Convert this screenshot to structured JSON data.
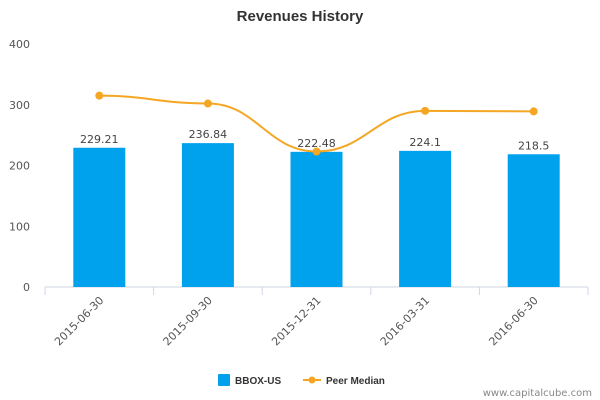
{
  "chart_data": {
    "type": "bar",
    "title": "Revenues History",
    "categories": [
      "2015-06-30",
      "2015-09-30",
      "2015-12-31",
      "2016-03-31",
      "2016-06-30"
    ],
    "series": [
      {
        "name": "BBOX-US",
        "type": "bar",
        "values": [
          229.21,
          236.84,
          222.48,
          224.1,
          218.5
        ],
        "data_labels": [
          "229.21",
          "236.84",
          "222.48",
          "224.1",
          "218.5"
        ]
      },
      {
        "name": "Peer Median",
        "type": "line",
        "values": [
          315,
          302,
          223,
          290,
          289
        ]
      }
    ],
    "yticks": [
      "0",
      "100",
      "200",
      "300",
      "400"
    ],
    "ylim": [
      0,
      400
    ],
    "grid": false,
    "legend_position": "bottom-center"
  },
  "colors": {
    "bar": "#00a2ed",
    "line": "#f5a623",
    "axis": "#cfd6e3",
    "title": "#333333"
  },
  "watermark": "www.capitalcube.com"
}
